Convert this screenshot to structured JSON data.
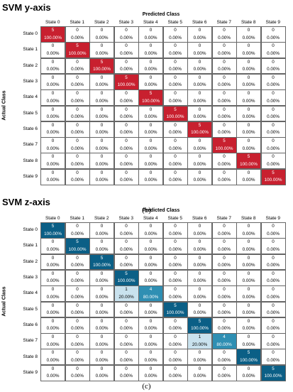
{
  "panels": [
    {
      "title": "SVM y-axis",
      "xlabel": "Predicted Class",
      "ylabel": "Actual Class",
      "sublabel": "(b)",
      "classes": [
        "State 0",
        "State 1",
        "State 2",
        "State 3",
        "State 4",
        "State 5",
        "State 6",
        "State 7",
        "State 8",
        "State 9"
      ],
      "colors": {
        "diag": "#c8202f",
        "off_nonzero": "#f2c9cd",
        "zero": "#ffffff"
      },
      "counts": [
        [
          5,
          0,
          0,
          0,
          0,
          0,
          0,
          0,
          0,
          0
        ],
        [
          0,
          5,
          0,
          0,
          0,
          0,
          0,
          0,
          0,
          0
        ],
        [
          0,
          0,
          5,
          0,
          0,
          0,
          0,
          0,
          0,
          0
        ],
        [
          0,
          0,
          0,
          5,
          0,
          0,
          0,
          0,
          0,
          0
        ],
        [
          0,
          0,
          0,
          0,
          5,
          0,
          0,
          0,
          0,
          0
        ],
        [
          0,
          0,
          0,
          0,
          0,
          5,
          0,
          0,
          0,
          0
        ],
        [
          0,
          0,
          0,
          0,
          0,
          0,
          5,
          0,
          0,
          0
        ],
        [
          0,
          0,
          0,
          0,
          0,
          0,
          0,
          5,
          0,
          0
        ],
        [
          0,
          0,
          0,
          0,
          0,
          0,
          0,
          0,
          5,
          0
        ],
        [
          0,
          0,
          0,
          0,
          0,
          0,
          0,
          0,
          0,
          5
        ]
      ],
      "percents": [
        [
          "100.00%",
          "0.00%",
          "0.00%",
          "0.00%",
          "0.00%",
          "0.00%",
          "0.00%",
          "0.00%",
          "0.00%",
          "0.00%"
        ],
        [
          "0.00%",
          "100.00%",
          "0.00%",
          "0.00%",
          "0.00%",
          "0.00%",
          "0.00%",
          "0.00%",
          "0.00%",
          "0.00%"
        ],
        [
          "0.00%",
          "0.00%",
          "100.00%",
          "0.00%",
          "0.00%",
          "0.00%",
          "0.00%",
          "0.00%",
          "0.00%",
          "0.00%"
        ],
        [
          "0.00%",
          "0.00%",
          "0.00%",
          "100.00%",
          "0.00%",
          "0.00%",
          "0.00%",
          "0.00%",
          "0.00%",
          "0.00%"
        ],
        [
          "0.00%",
          "0.00%",
          "0.00%",
          "0.00%",
          "100.00%",
          "0.00%",
          "0.00%",
          "0.00%",
          "0.00%",
          "0.00%"
        ],
        [
          "0.00%",
          "0.00%",
          "0.00%",
          "0.00%",
          "0.00%",
          "100.00%",
          "0.00%",
          "0.00%",
          "0.00%",
          "0.00%"
        ],
        [
          "0.00%",
          "0.00%",
          "0.00%",
          "0.00%",
          "0.00%",
          "0.00%",
          "100.00%",
          "0.00%",
          "0.00%",
          "0.00%"
        ],
        [
          "0.00%",
          "0.00%",
          "0.00%",
          "0.00%",
          "0.00%",
          "0.00%",
          "0.00%",
          "100.00%",
          "0.00%",
          "0.00%"
        ],
        [
          "0.00%",
          "0.00%",
          "0.00%",
          "0.00%",
          "0.00%",
          "0.00%",
          "0.00%",
          "0.00%",
          "100.00%",
          "0.00%"
        ],
        [
          "0.00%",
          "0.00%",
          "0.00%",
          "0.00%",
          "0.00%",
          "0.00%",
          "0.00%",
          "0.00%",
          "0.00%",
          "100.00%"
        ]
      ]
    },
    {
      "title": "SVM z-axis",
      "xlabel": "Predicted Class",
      "ylabel": "Actual Class",
      "sublabel": "(c)",
      "classes": [
        "State 0",
        "State 1",
        "State 2",
        "State 3",
        "State 4",
        "State 5",
        "State 6",
        "State 7",
        "State 8",
        "State 9"
      ],
      "colors": {
        "diag": "#0b5f86",
        "diag_partial": "#2f8fb3",
        "off_nonzero": "#c9e2ee",
        "zero": "#ffffff"
      },
      "counts": [
        [
          5,
          0,
          0,
          0,
          0,
          0,
          0,
          0,
          0,
          0
        ],
        [
          0,
          5,
          0,
          0,
          0,
          0,
          0,
          0,
          0,
          0
        ],
        [
          0,
          0,
          5,
          0,
          0,
          0,
          0,
          0,
          0,
          0
        ],
        [
          0,
          0,
          0,
          5,
          0,
          0,
          0,
          0,
          0,
          0
        ],
        [
          0,
          0,
          0,
          1,
          4,
          0,
          0,
          0,
          0,
          0
        ],
        [
          0,
          0,
          0,
          0,
          0,
          5,
          0,
          0,
          0,
          0
        ],
        [
          0,
          0,
          0,
          0,
          0,
          0,
          5,
          0,
          0,
          0
        ],
        [
          0,
          0,
          0,
          0,
          0,
          0,
          1,
          4,
          0,
          0
        ],
        [
          0,
          0,
          0,
          0,
          0,
          0,
          0,
          0,
          5,
          0
        ],
        [
          0,
          0,
          0,
          0,
          0,
          0,
          0,
          0,
          0,
          5
        ]
      ],
      "percents": [
        [
          "100.00%",
          "0.00%",
          "0.00%",
          "0.00%",
          "0.00%",
          "0.00%",
          "0.00%",
          "0.00%",
          "0.00%",
          "0.00%"
        ],
        [
          "0.00%",
          "100.00%",
          "0.00%",
          "0.00%",
          "0.00%",
          "0.00%",
          "0.00%",
          "0.00%",
          "0.00%",
          "0.00%"
        ],
        [
          "0.00%",
          "0.00%",
          "100.00%",
          "0.00%",
          "0.00%",
          "0.00%",
          "0.00%",
          "0.00%",
          "0.00%",
          "0.00%"
        ],
        [
          "0.00%",
          "0.00%",
          "0.00%",
          "100.00%",
          "0.00%",
          "0.00%",
          "0.00%",
          "0.00%",
          "0.00%",
          "0.00%"
        ],
        [
          "0.00%",
          "0.00%",
          "0.00%",
          "20.00%",
          "80.00%",
          "0.00%",
          "0.00%",
          "0.00%",
          "0.00%",
          "0.00%"
        ],
        [
          "0.00%",
          "0.00%",
          "0.00%",
          "0.00%",
          "0.00%",
          "100.00%",
          "0.00%",
          "0.00%",
          "0.00%",
          "0.00%"
        ],
        [
          "0.00%",
          "0.00%",
          "0.00%",
          "0.00%",
          "0.00%",
          "0.00%",
          "100.00%",
          "0.00%",
          "0.00%",
          "0.00%"
        ],
        [
          "0.00%",
          "0.00%",
          "0.00%",
          "0.00%",
          "0.00%",
          "0.00%",
          "20.00%",
          "80.00%",
          "0.00%",
          "0.00%"
        ],
        [
          "0.00%",
          "0.00%",
          "0.00%",
          "0.00%",
          "0.00%",
          "0.00%",
          "0.00%",
          "0.00%",
          "100.00%",
          "0.00%"
        ],
        [
          "0.00%",
          "0.00%",
          "0.00%",
          "0.00%",
          "0.00%",
          "0.00%",
          "0.00%",
          "0.00%",
          "0.00%",
          "100.00%"
        ]
      ]
    }
  ],
  "chart_data": [
    {
      "type": "heatmap",
      "title": "SVM y-axis",
      "xlabel": "Predicted Class",
      "ylabel": "Actual Class",
      "x": [
        "State 0",
        "State 1",
        "State 2",
        "State 3",
        "State 4",
        "State 5",
        "State 6",
        "State 7",
        "State 8",
        "State 9"
      ],
      "y": [
        "State 0",
        "State 1",
        "State 2",
        "State 3",
        "State 4",
        "State 5",
        "State 6",
        "State 7",
        "State 8",
        "State 9"
      ],
      "values": [
        [
          5,
          0,
          0,
          0,
          0,
          0,
          0,
          0,
          0,
          0
        ],
        [
          0,
          5,
          0,
          0,
          0,
          0,
          0,
          0,
          0,
          0
        ],
        [
          0,
          0,
          5,
          0,
          0,
          0,
          0,
          0,
          0,
          0
        ],
        [
          0,
          0,
          0,
          5,
          0,
          0,
          0,
          0,
          0,
          0
        ],
        [
          0,
          0,
          0,
          0,
          5,
          0,
          0,
          0,
          0,
          0
        ],
        [
          0,
          0,
          0,
          0,
          0,
          5,
          0,
          0,
          0,
          0
        ],
        [
          0,
          0,
          0,
          0,
          0,
          0,
          5,
          0,
          0,
          0
        ],
        [
          0,
          0,
          0,
          0,
          0,
          0,
          0,
          5,
          0,
          0
        ],
        [
          0,
          0,
          0,
          0,
          0,
          0,
          0,
          0,
          5,
          0
        ],
        [
          0,
          0,
          0,
          0,
          0,
          0,
          0,
          0,
          0,
          5
        ]
      ]
    },
    {
      "type": "heatmap",
      "title": "SVM z-axis",
      "xlabel": "Predicted Class",
      "ylabel": "Actual Class",
      "x": [
        "State 0",
        "State 1",
        "State 2",
        "State 3",
        "State 4",
        "State 5",
        "State 6",
        "State 7",
        "State 8",
        "State 9"
      ],
      "y": [
        "State 0",
        "State 1",
        "State 2",
        "State 3",
        "State 4",
        "State 5",
        "State 6",
        "State 7",
        "State 8",
        "State 9"
      ],
      "values": [
        [
          5,
          0,
          0,
          0,
          0,
          0,
          0,
          0,
          0,
          0
        ],
        [
          0,
          5,
          0,
          0,
          0,
          0,
          0,
          0,
          0,
          0
        ],
        [
          0,
          0,
          5,
          0,
          0,
          0,
          0,
          0,
          0,
          0
        ],
        [
          0,
          0,
          0,
          5,
          0,
          0,
          0,
          0,
          0,
          0
        ],
        [
          0,
          0,
          0,
          1,
          4,
          0,
          0,
          0,
          0,
          0
        ],
        [
          0,
          0,
          0,
          0,
          0,
          5,
          0,
          0,
          0,
          0
        ],
        [
          0,
          0,
          0,
          0,
          0,
          0,
          5,
          0,
          0,
          0
        ],
        [
          0,
          0,
          0,
          0,
          0,
          0,
          1,
          4,
          0,
          0
        ],
        [
          0,
          0,
          0,
          0,
          0,
          0,
          0,
          0,
          5,
          0
        ],
        [
          0,
          0,
          0,
          0,
          0,
          0,
          0,
          0,
          0,
          5
        ]
      ]
    }
  ]
}
